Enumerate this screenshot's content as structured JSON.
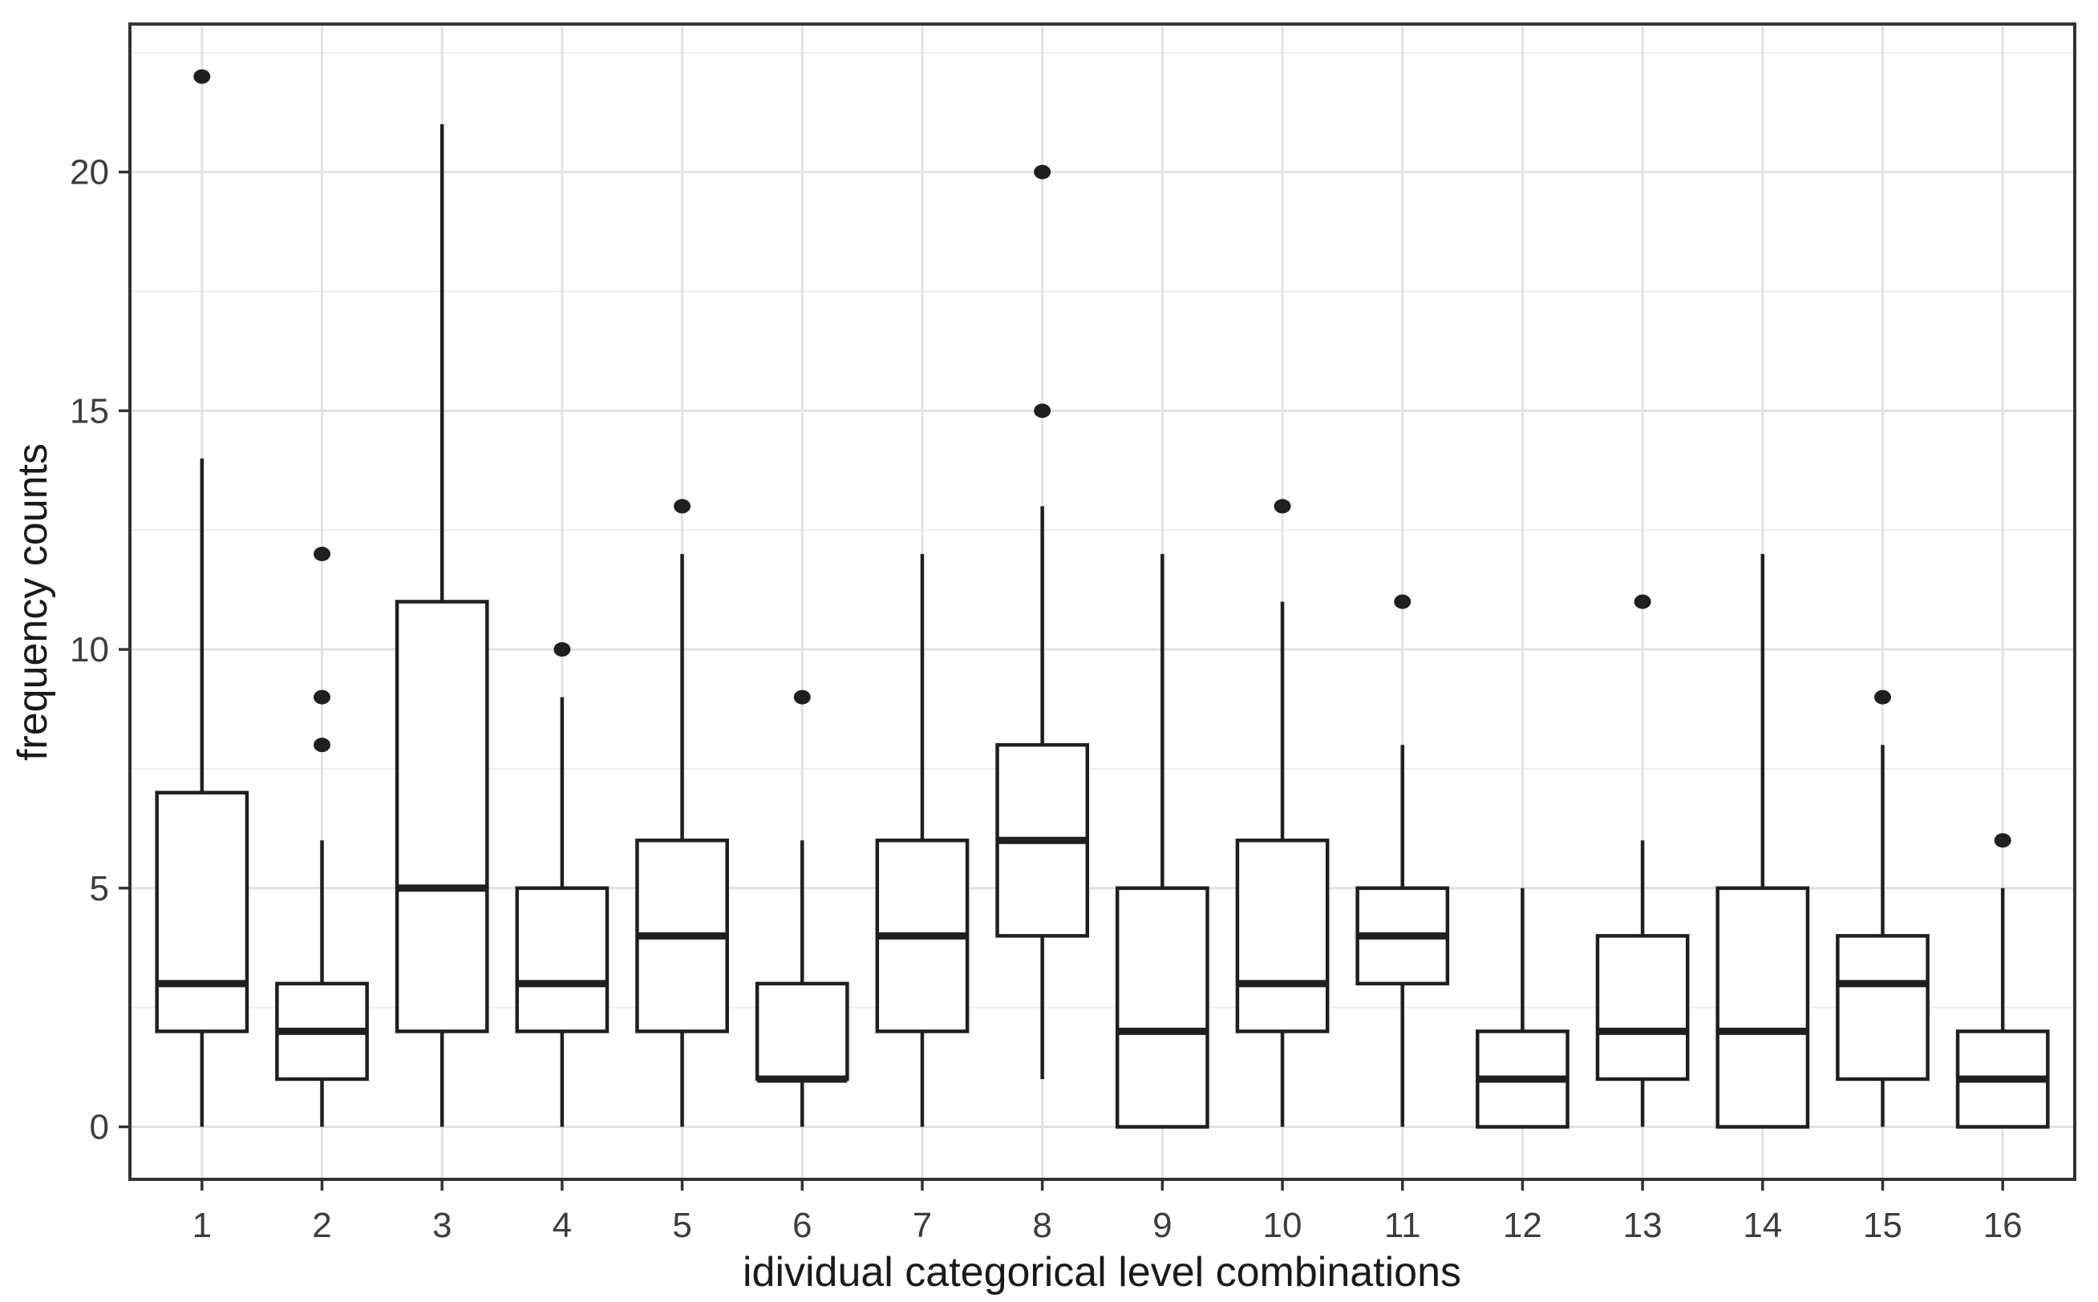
{
  "chart_data": {
    "type": "boxplot",
    "title": "",
    "xlabel": "idividual categorical level combinations",
    "ylabel": "frequency counts",
    "categories": [
      "1",
      "2",
      "3",
      "4",
      "5",
      "6",
      "7",
      "8",
      "9",
      "10",
      "11",
      "12",
      "13",
      "14",
      "15",
      "16"
    ],
    "y_axis": {
      "major_ticks": [
        0,
        5,
        10,
        15,
        20
      ],
      "minor_ticks": [
        2.5,
        7.5,
        12.5,
        17.5,
        22.5
      ],
      "limits": [
        -1.1,
        23.1
      ]
    },
    "grid": "on",
    "legend": "none",
    "boxes": [
      {
        "category": "1",
        "whisker_low": 0,
        "q1": 2,
        "median": 3,
        "q3": 7,
        "whisker_high": 14,
        "outliers": [
          22
        ]
      },
      {
        "category": "2",
        "whisker_low": 0,
        "q1": 1,
        "median": 2,
        "q3": 3,
        "whisker_high": 6,
        "outliers": [
          8,
          9,
          12
        ]
      },
      {
        "category": "3",
        "whisker_low": 0,
        "q1": 2,
        "median": 5,
        "q3": 11,
        "whisker_high": 21,
        "outliers": []
      },
      {
        "category": "4",
        "whisker_low": 0,
        "q1": 2,
        "median": 3,
        "q3": 5,
        "whisker_high": 9,
        "outliers": [
          10
        ]
      },
      {
        "category": "5",
        "whisker_low": 0,
        "q1": 2,
        "median": 4,
        "q3": 6,
        "whisker_high": 12,
        "outliers": [
          13
        ]
      },
      {
        "category": "6",
        "whisker_low": 0,
        "q1": 1,
        "median": 1,
        "q3": 3,
        "whisker_high": 6,
        "outliers": [
          9
        ]
      },
      {
        "category": "7",
        "whisker_low": 0,
        "q1": 2,
        "median": 4,
        "q3": 6,
        "whisker_high": 12,
        "outliers": []
      },
      {
        "category": "8",
        "whisker_low": 1,
        "q1": 4,
        "median": 6,
        "q3": 8,
        "whisker_high": 13,
        "outliers": [
          15,
          20
        ]
      },
      {
        "category": "9",
        "whisker_low": 0,
        "q1": 0,
        "median": 2,
        "q3": 5,
        "whisker_high": 12,
        "outliers": []
      },
      {
        "category": "10",
        "whisker_low": 0,
        "q1": 2,
        "median": 3,
        "q3": 6,
        "whisker_high": 11,
        "outliers": [
          13
        ]
      },
      {
        "category": "11",
        "whisker_low": 0,
        "q1": 3,
        "median": 4,
        "q3": 5,
        "whisker_high": 8,
        "outliers": [
          11
        ]
      },
      {
        "category": "12",
        "whisker_low": 0,
        "q1": 0,
        "median": 1,
        "q3": 2,
        "whisker_high": 5,
        "outliers": []
      },
      {
        "category": "13",
        "whisker_low": 0,
        "q1": 1,
        "median": 2,
        "q3": 4,
        "whisker_high": 6,
        "outliers": [
          11
        ]
      },
      {
        "category": "14",
        "whisker_low": 0,
        "q1": 0,
        "median": 2,
        "q3": 5,
        "whisker_high": 12,
        "outliers": []
      },
      {
        "category": "15",
        "whisker_low": 0,
        "q1": 1,
        "median": 3,
        "q3": 4,
        "whisker_high": 8,
        "outliers": [
          9
        ]
      },
      {
        "category": "16",
        "whisker_low": 0,
        "q1": 0,
        "median": 1,
        "q3": 2,
        "whisker_high": 5,
        "outliers": [
          6
        ]
      }
    ],
    "style": {
      "background": "#ffffff",
      "panel_border": "#333333",
      "grid_major": "#e2e2e2",
      "grid_minor": "#eeeeee",
      "box_stroke": "#1f1f1f",
      "box_fill": "#ffffff",
      "outlier_color": "#1f1f1f",
      "tick_color": "#333333",
      "tick_label_color": "#3d3d3d",
      "title_color": "#1a1a1a"
    }
  }
}
